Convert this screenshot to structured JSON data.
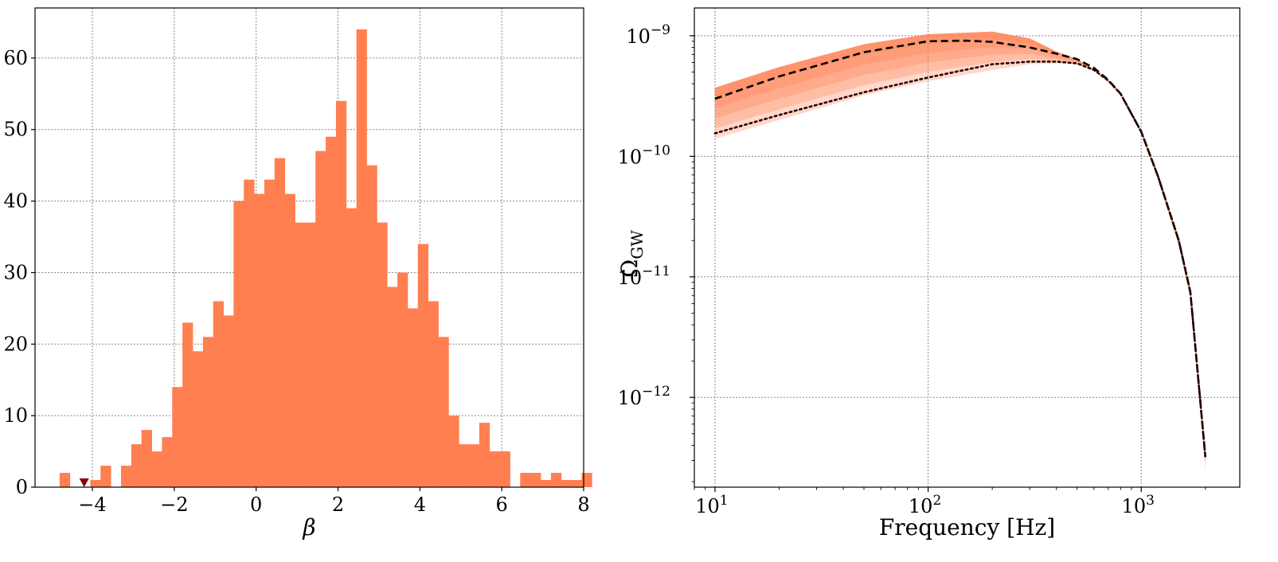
{
  "colors": {
    "bar": "#FF7F50",
    "marker": "#8B0000",
    "band": "#FF7F50",
    "grid": "#888888",
    "dashed_line": "#000000",
    "dotted_line": "#2a0000"
  },
  "chart_data": [
    {
      "type": "bar",
      "subtype": "histogram",
      "xlabel": "β",
      "ylabel": "",
      "xlim": [
        -5.4,
        8.0
      ],
      "ylim": [
        0,
        67
      ],
      "xticks": [
        -4,
        -2,
        0,
        2,
        4,
        6,
        8
      ],
      "xtick_labels": [
        "−4",
        "−2",
        "0",
        "2",
        "4",
        "6",
        "8"
      ],
      "yticks": [
        0,
        10,
        20,
        30,
        40,
        50,
        60
      ],
      "ytick_labels": [
        "0",
        "10",
        "20",
        "30",
        "40",
        "50",
        "60"
      ],
      "grid": true,
      "bins_start": -4.8,
      "bin_width": 0.25,
      "counts": [
        2,
        0,
        0,
        1,
        3,
        0,
        3,
        6,
        8,
        5,
        7,
        14,
        23,
        19,
        21,
        26,
        24,
        40,
        43,
        41,
        43,
        46,
        41,
        37,
        37,
        47,
        49,
        54,
        39,
        64,
        45,
        37,
        28,
        30,
        25,
        34,
        26,
        21,
        10,
        6,
        6,
        9,
        5,
        5,
        0,
        2,
        2,
        1,
        2,
        1,
        1,
        2
      ],
      "marker": {
        "x": -4.2,
        "y": 0,
        "shape": "triangle-down"
      }
    },
    {
      "type": "line",
      "xlabel": "Frequency [Hz]",
      "ylabel": "ΩGW",
      "xscale": "log",
      "yscale": "log",
      "xlim": [
        8,
        2900
      ],
      "ylim": [
        1.8e-13,
        1.7e-09
      ],
      "xticks": [
        10,
        100,
        1000
      ],
      "xtick_labels": [
        {
          "base": "10",
          "exp": "1"
        },
        {
          "base": "10",
          "exp": "2"
        },
        {
          "base": "10",
          "exp": "3"
        }
      ],
      "yticks": [
        1e-12,
        1e-11,
        1e-10,
        1e-09
      ],
      "ytick_labels": [
        {
          "base": "10",
          "exp": "−12"
        },
        {
          "base": "10",
          "exp": "−11"
        },
        {
          "base": "10",
          "exp": "−10"
        },
        {
          "base": "10",
          "exp": "−9"
        }
      ],
      "grid": true,
      "band": {
        "x": [
          10,
          20,
          50,
          100,
          200,
          300,
          400,
          500,
          600,
          700,
          800,
          1000,
          1200,
          1500,
          1700,
          2000
        ],
        "upper": [
          3.7e-10,
          5.5e-10,
          8.5e-10,
          1.03e-09,
          1.08e-09,
          9.5e-10,
          7.4e-10,
          6.4e-10,
          5.3e-10,
          4.3e-10,
          3.4e-10,
          1.65e-10,
          7e-11,
          2.1e-11,
          8e-12,
          3.6e-13
        ],
        "lower": [
          1.4e-10,
          2e-10,
          3.2e-10,
          4.2e-10,
          5.2e-10,
          5.8e-10,
          5.9e-10,
          5.8e-10,
          5.1e-10,
          4.1e-10,
          3.2e-10,
          1.52e-10,
          6.3e-11,
          1.8e-11,
          6.5e-12,
          2.5e-13
        ]
      },
      "series": [
        {
          "style": "dashed",
          "x": [
            10,
            20,
            50,
            100,
            150,
            200,
            300,
            400,
            500,
            600,
            700,
            800,
            1000,
            1200,
            1500,
            1700,
            2000
          ],
          "y": [
            3e-10,
            4.6e-10,
            7.3e-10,
            9e-10,
            9.1e-10,
            8.9e-10,
            8e-10,
            7.1e-10,
            6.4e-10,
            5.4e-10,
            4.3e-10,
            3.3e-10,
            1.6e-10,
            6.8e-11,
            2e-11,
            7.5e-12,
            3.2e-13
          ]
        },
        {
          "style": "dotted",
          "x": [
            10,
            20,
            50,
            100,
            200,
            300,
            400,
            500,
            600,
            700,
            800,
            1000,
            1200,
            1500,
            1700,
            2000
          ],
          "y": [
            1.55e-10,
            2.2e-10,
            3.4e-10,
            4.5e-10,
            5.8e-10,
            6.1e-10,
            6.1e-10,
            5.9e-10,
            5.2e-10,
            4.25e-10,
            3.3e-10,
            1.6e-10,
            6.8e-11,
            2e-11,
            7.5e-12,
            3.2e-13
          ]
        }
      ]
    }
  ]
}
